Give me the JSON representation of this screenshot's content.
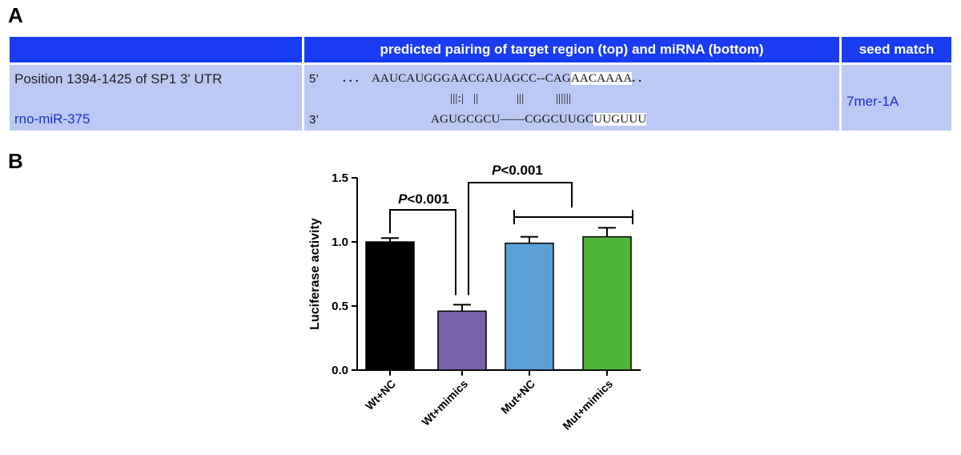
{
  "panel_a_letter": "A",
  "panel_b_letter": "B",
  "table": {
    "header": {
      "col1": "",
      "col2": "predicted pairing of target region (top) and miRNA (bottom)",
      "col3": "seed match"
    },
    "target_label": "Position 1394-1425 of SP1 3' UTR",
    "mirna_label": "rno-miR-375",
    "five_prime": "5’",
    "three_prime": "3’",
    "top_seq_dots": ". . .",
    "top_seq_main": "AAUCAUGGGAACGAUAGCC--CAG",
    "top_seq_seed": "AACAAAA",
    "top_seq_end": ". .",
    "pair_line": "|||:|   ||            |||          ||||||",
    "bottom_seq_main": "AGUGCGCU––––CGGCUUGC",
    "bottom_seq_seed": "UUGUUU",
    "seed_match": "7mer-1A",
    "colors": {
      "header_bg": "#1a3cf0",
      "body_bg": "#bcc9f5",
      "mirna_text": "#1a2fd0"
    }
  },
  "chart_data": {
    "type": "bar",
    "categories": [
      "Wt+NC",
      "Wt+mimics",
      "Mut+NC",
      "Mut+mimics"
    ],
    "values": [
      1.0,
      0.46,
      0.99,
      1.04
    ],
    "errors": [
      0.03,
      0.05,
      0.05,
      0.07
    ],
    "colors": [
      "#000000",
      "#7a62a8",
      "#5a9fd6",
      "#4fb53a"
    ],
    "ylabel": "Luciferase activity",
    "xlabel": "",
    "ylim": [
      0,
      1.5
    ],
    "yticks": [
      "0.0",
      "0.5",
      "1.0",
      "1.5"
    ],
    "ytick_values": [
      0,
      0.5,
      1.0,
      1.5
    ],
    "grid": false,
    "annotations": [
      {
        "text": "P<0.001",
        "italic_part": "P",
        "rest": "<0.001",
        "compares": "Wt+NC vs Wt+mimics"
      },
      {
        "text": "P<0.001",
        "italic_part": "P",
        "rest": "<0.001",
        "compares": "Wt+mimics vs Mut+NC, Mut+mimics"
      }
    ]
  }
}
